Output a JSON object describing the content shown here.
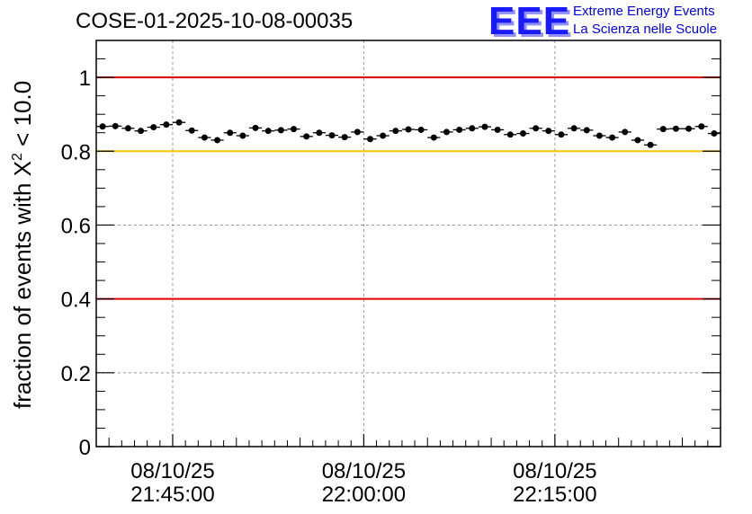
{
  "chart_data": {
    "type": "scatter",
    "title": "COSE-01-2025-10-08-00035",
    "xlabel": "",
    "ylabel": "fraction of events with",
    "ylabel_chi": "X",
    "ylabel_exp": "2",
    "ylabel_tail": " < 10.0",
    "ylim": [
      0,
      1.1
    ],
    "y_ticks": [
      "0",
      "0.2",
      "0.4",
      "0.6",
      "0.8",
      "1"
    ],
    "x_ticks": [
      {
        "date": "08/10/25",
        "time": "21:45:00"
      },
      {
        "date": "08/10/25",
        "time": "22:00:00"
      },
      {
        "date": "08/10/25",
        "time": "22:15:00"
      }
    ],
    "x_tick_minutes": [
      6,
      21,
      36
    ],
    "x_range_minutes": [
      0,
      49
    ],
    "grid": true,
    "reference_lines": [
      {
        "y": 1.0,
        "color": "#e00000"
      },
      {
        "y": 0.8,
        "color": "#ffc400"
      },
      {
        "y": 0.4,
        "color": "#e00000"
      }
    ],
    "series": [
      {
        "name": "fraction",
        "color": "#000000",
        "values": [
          0.867,
          0.868,
          0.862,
          0.855,
          0.865,
          0.872,
          0.878,
          0.856,
          0.837,
          0.83,
          0.85,
          0.842,
          0.863,
          0.855,
          0.857,
          0.86,
          0.84,
          0.85,
          0.843,
          0.838,
          0.852,
          0.833,
          0.842,
          0.855,
          0.859,
          0.858,
          0.837,
          0.852,
          0.858,
          0.862,
          0.866,
          0.858,
          0.845,
          0.848,
          0.862,
          0.855,
          0.845,
          0.862,
          0.857,
          0.842,
          0.837,
          0.852,
          0.83,
          0.817,
          0.86,
          0.861,
          0.861,
          0.867,
          0.848
        ],
        "errors": 0.006
      }
    ]
  },
  "logo": {
    "mark": "EEE",
    "line1": "Extreme Energy Events",
    "line2": "La Scienza nelle Scuole"
  }
}
